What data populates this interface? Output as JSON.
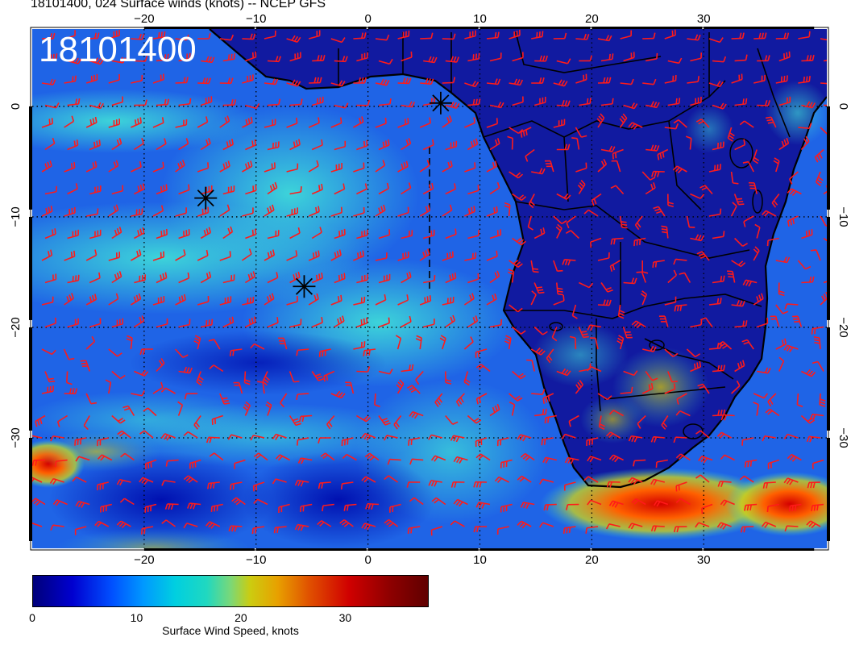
{
  "title": "18101400, 024 Surface winds (knots) -- NCEP GFS",
  "stamp": "18101400",
  "lon_ticks": [
    "−20",
    "−10",
    "0",
    "10",
    "20",
    "30"
  ],
  "lat_ticks": [
    "0",
    "−10",
    "−20",
    "−30"
  ],
  "lon_values": [
    -20,
    -10,
    0,
    10,
    20,
    30
  ],
  "lat_values": [
    0,
    -10,
    -20,
    -30
  ],
  "extent": {
    "lon": [
      -30,
      41
    ],
    "lat": [
      -40,
      7
    ]
  },
  "colorbar": {
    "label": "Surface Wind Speed, knots",
    "ticks": [
      "0",
      "10",
      "20",
      "30"
    ],
    "tick_values": [
      0,
      10,
      20,
      30
    ],
    "range": [
      0,
      38
    ],
    "colors": [
      "#00007a",
      "#0000d0",
      "#0050ff",
      "#0099ff",
      "#00cfe0",
      "#7ad878",
      "#cccc10",
      "#e8a000",
      "#e05000",
      "#d00000",
      "#900000",
      "#600000"
    ]
  },
  "markers": [
    {
      "name": "star-marker",
      "lon": 6.5,
      "lat": 0.3
    },
    {
      "name": "star-marker",
      "lon": -14.5,
      "lat": -8.3
    },
    {
      "name": "star-marker",
      "lon": -5.7,
      "lat": -16.3
    }
  ],
  "barb_color": "#ff1a1a",
  "coast_color": "#000000"
}
